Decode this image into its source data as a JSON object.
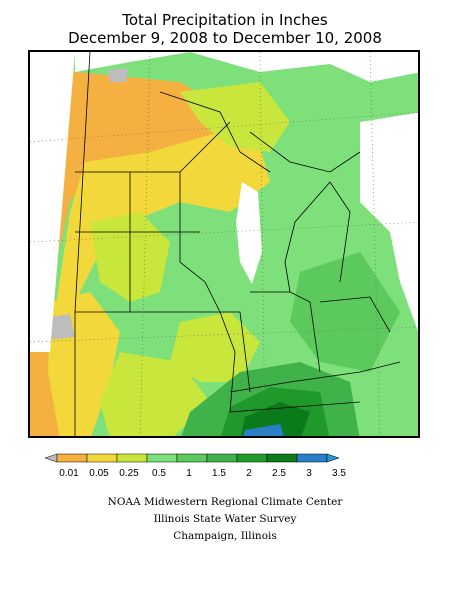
{
  "title": {
    "line1": "Total Precipitation in Inches",
    "line2": "December 9, 2008 to December 10, 2008"
  },
  "legend": {
    "labels": [
      "0.01",
      "0.05",
      "0.25",
      "0.5",
      "1",
      "1.5",
      "2",
      "2.5",
      "3",
      "3.5"
    ],
    "colors": [
      "#bdbdbd",
      "#f5b042",
      "#f2d83a",
      "#c8e63c",
      "#7ee07a",
      "#5cc95c",
      "#3fb24a",
      "#1f9a2a",
      "#0a7a1a",
      "#2a7fc8",
      "#1f9ad6"
    ]
  },
  "credits": {
    "line1": "NOAA Midwestern Regional Climate Center",
    "line2": "Illinois State Water Survey",
    "line3": "Champaign, Illinois"
  }
}
